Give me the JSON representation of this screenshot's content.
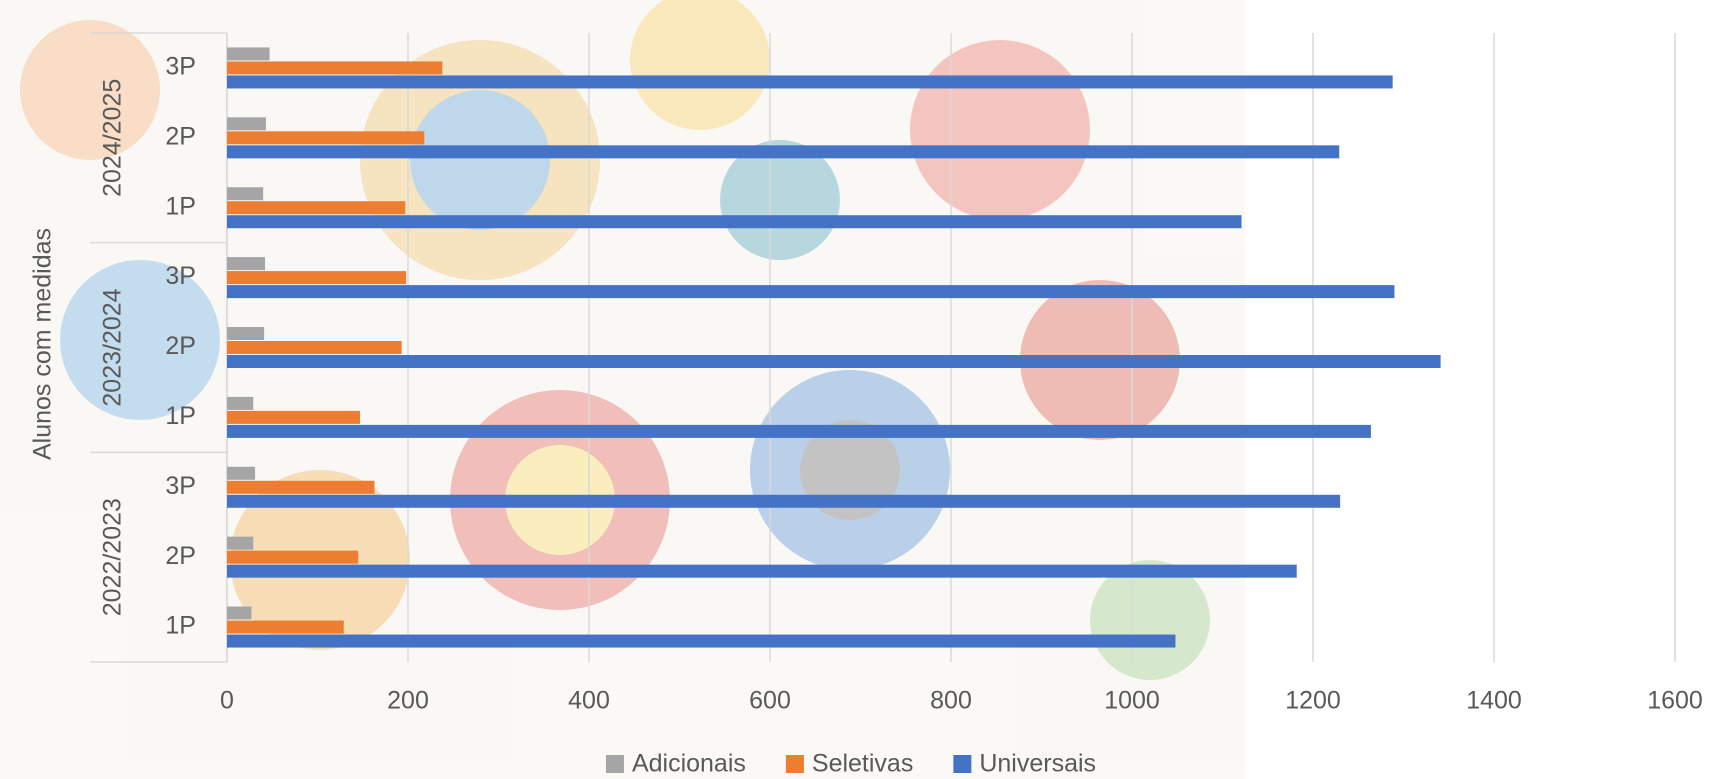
{
  "chart_data": {
    "type": "barh",
    "y_label": "Alunos com medidas",
    "groups": [
      "2022/2023",
      "2023/2024",
      "2024/2025"
    ],
    "categories": [
      "1P",
      "2P",
      "3P",
      "1P",
      "2P",
      "3P",
      "1P",
      "2P",
      "3P"
    ],
    "series": [
      {
        "name": "Adicionais",
        "color": "#a5a5a5",
        "values": [
          27,
          29,
          31,
          29,
          41,
          42,
          40,
          43,
          47
        ]
      },
      {
        "name": "Seletivas",
        "color": "#ed7d31",
        "values": [
          129,
          145,
          163,
          147,
          193,
          198,
          197,
          218,
          238
        ]
      },
      {
        "name": "Universais",
        "color": "#4472c4",
        "values": [
          1048,
          1182,
          1230,
          1264,
          1341,
          1290,
          1121,
          1229,
          1288
        ]
      }
    ],
    "xlim": [
      0,
      1600
    ],
    "xticks": [
      0,
      200,
      400,
      600,
      800,
      1000,
      1200,
      1400,
      1600
    ],
    "grid": true,
    "legend": "bottom"
  }
}
